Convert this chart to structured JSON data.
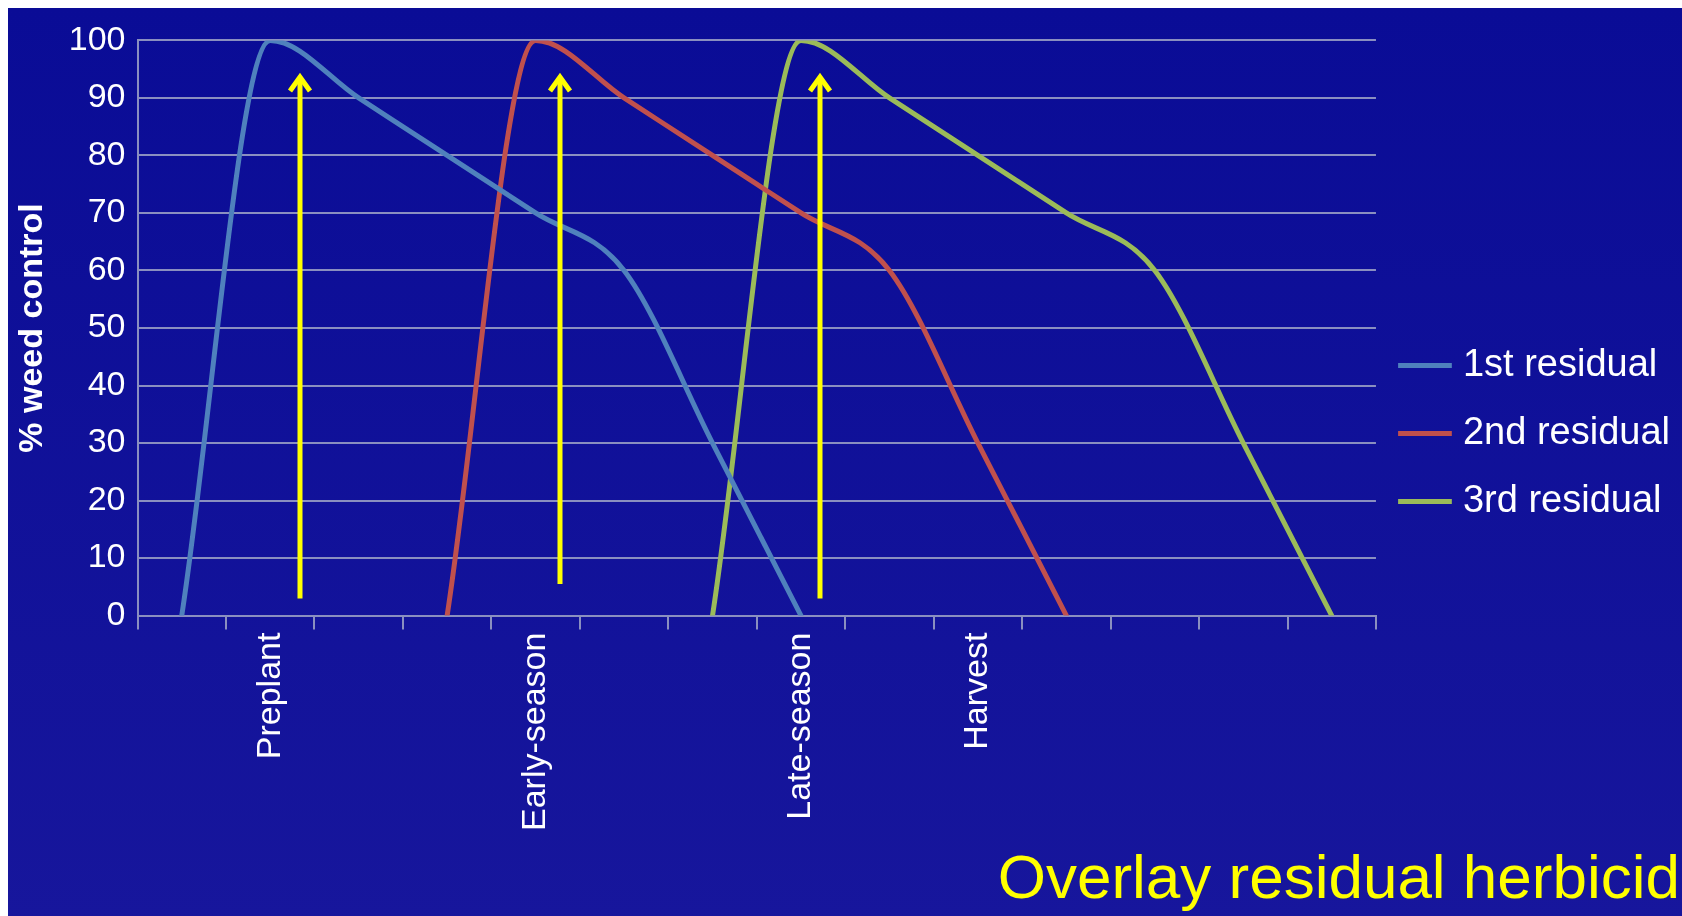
{
  "chart_data": {
    "type": "line",
    "title": "Overlay residual herbicid",
    "ylabel": "% weed control",
    "categories": [
      null,
      "Preplant",
      null,
      null,
      "Early-season",
      null,
      null,
      "Late-season",
      null,
      "Harvest",
      null,
      null,
      null,
      null
    ],
    "series": [
      {
        "name": "1st residual",
        "color": "#4f81bd",
        "values": [
          0,
          100,
          90,
          80,
          70,
          60,
          30,
          0,
          null,
          null,
          null,
          null,
          null,
          null
        ]
      },
      {
        "name": "2nd residual",
        "color": "#c0504d",
        "values": [
          null,
          null,
          null,
          0,
          100,
          90,
          80,
          70,
          60,
          30,
          0,
          null,
          null,
          null
        ]
      },
      {
        "name": "3rd residual",
        "color": "#9bbb59",
        "values": [
          null,
          null,
          null,
          null,
          null,
          null,
          0,
          100,
          90,
          80,
          70,
          60,
          30,
          0
        ]
      }
    ],
    "ylim": [
      0,
      100
    ],
    "yticks": [
      0,
      10,
      20,
      30,
      40,
      50,
      60,
      70,
      80,
      90,
      100
    ],
    "grid": "y",
    "legend": "right",
    "marker": "none"
  }
}
